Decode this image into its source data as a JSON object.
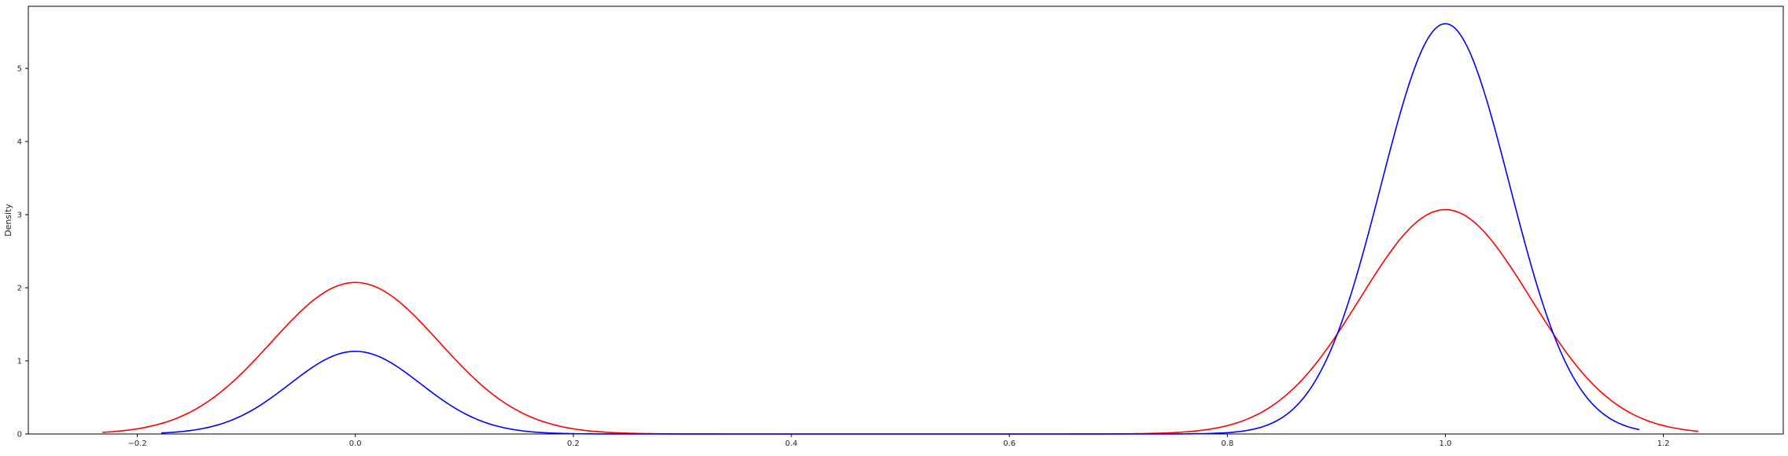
{
  "chart_data": {
    "type": "line",
    "title": "",
    "xlabel": "",
    "ylabel": "Density",
    "xlim": [
      -0.3,
      1.31
    ],
    "ylim": [
      0,
      5.85
    ],
    "xticks": [
      -0.2,
      0.0,
      0.2,
      0.4,
      0.6,
      0.8,
      1.0,
      1.2
    ],
    "xtick_labels": [
      "−0.2",
      "0.0",
      "0.2",
      "0.4",
      "0.6",
      "0.8",
      "1.0",
      "1.2"
    ],
    "yticks": [
      0,
      1,
      2,
      3,
      4,
      5
    ],
    "ytick_labels": [
      "0",
      "1",
      "2",
      "3",
      "4",
      "5"
    ],
    "grid": false,
    "legend": null,
    "series": [
      {
        "color": "#ff0000",
        "x_range": [
          -0.232,
          1.232
        ],
        "components": [
          {
            "weight": 0.4,
            "mean": 0.0,
            "sd": 0.077
          },
          {
            "weight": 0.6,
            "mean": 1.0,
            "sd": 0.078
          }
        ],
        "peaks": [
          {
            "x": 0.0,
            "y": 2.07
          },
          {
            "x": 1.0,
            "y": 3.06
          }
        ]
      },
      {
        "color": "#0000ff",
        "x_range": [
          -0.178,
          1.178
        ],
        "components": [
          {
            "weight": 0.17,
            "mean": 0.0,
            "sd": 0.06
          },
          {
            "weight": 0.83,
            "mean": 1.0,
            "sd": 0.059
          }
        ],
        "peaks": [
          {
            "x": 0.0,
            "y": 1.13
          },
          {
            "x": 1.0,
            "y": 5.6
          }
        ]
      }
    ]
  }
}
